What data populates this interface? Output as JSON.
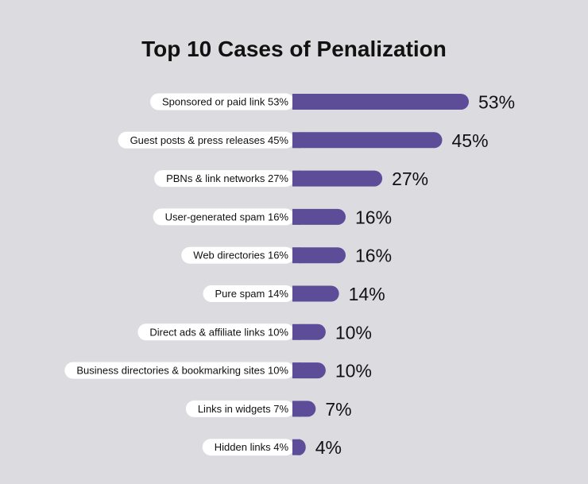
{
  "chart_data": {
    "type": "bar",
    "orientation": "horizontal",
    "title": "Top 10 Cases of Penalization",
    "categories": [
      "Sponsored or paid link 53%",
      "Guest posts & press releases 45%",
      "PBNs & link networks 27%",
      "User-generated spam 16%",
      "Web directories 16%",
      "Pure spam 14%",
      "Direct ads & affiliate links 10%",
      "Business directories & bookmarking sites 10%",
      "Links in widgets 7%",
      "Hidden links 4%"
    ],
    "values": [
      53,
      45,
      27,
      16,
      16,
      14,
      10,
      10,
      7,
      4
    ],
    "value_labels": [
      "53%",
      "45%",
      "27%",
      "16%",
      "16%",
      "14%",
      "10%",
      "10%",
      "7%",
      "4%"
    ],
    "unit": "%",
    "grid": false,
    "legend": "none",
    "colors": {
      "background": "#dcdbe0",
      "bar": "#5d4d98",
      "label_pill": "#ffffff",
      "text": "#111111"
    }
  }
}
